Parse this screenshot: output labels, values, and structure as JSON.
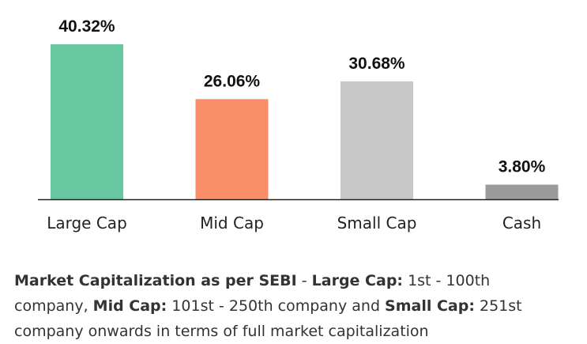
{
  "chart_data": {
    "type": "bar",
    "categories": [
      "Large Cap",
      "Mid Cap",
      "Small Cap",
      "Cash"
    ],
    "values": [
      40.32,
      26.06,
      30.68,
      3.8
    ],
    "value_labels": [
      "40.32%",
      "26.06%",
      "30.68%",
      "3.80%"
    ],
    "colors": [
      "#66c7a1",
      "#f98e68",
      "#c8c8c8",
      "#9b9b9b"
    ],
    "ylim": [
      0,
      40.32
    ],
    "grid": false,
    "axis_color": "#222222"
  },
  "footnote": {
    "t1": "Market Capitalization as per SEBI",
    "t2": " - ",
    "t3": "Large Cap:",
    "t4": " 1st - 100th company, ",
    "t5": "Mid Cap:",
    "t6": " 101st - 250th company and ",
    "t7": "Small Cap:",
    "t8": " 251st company onwards in terms of full market capitalization"
  }
}
